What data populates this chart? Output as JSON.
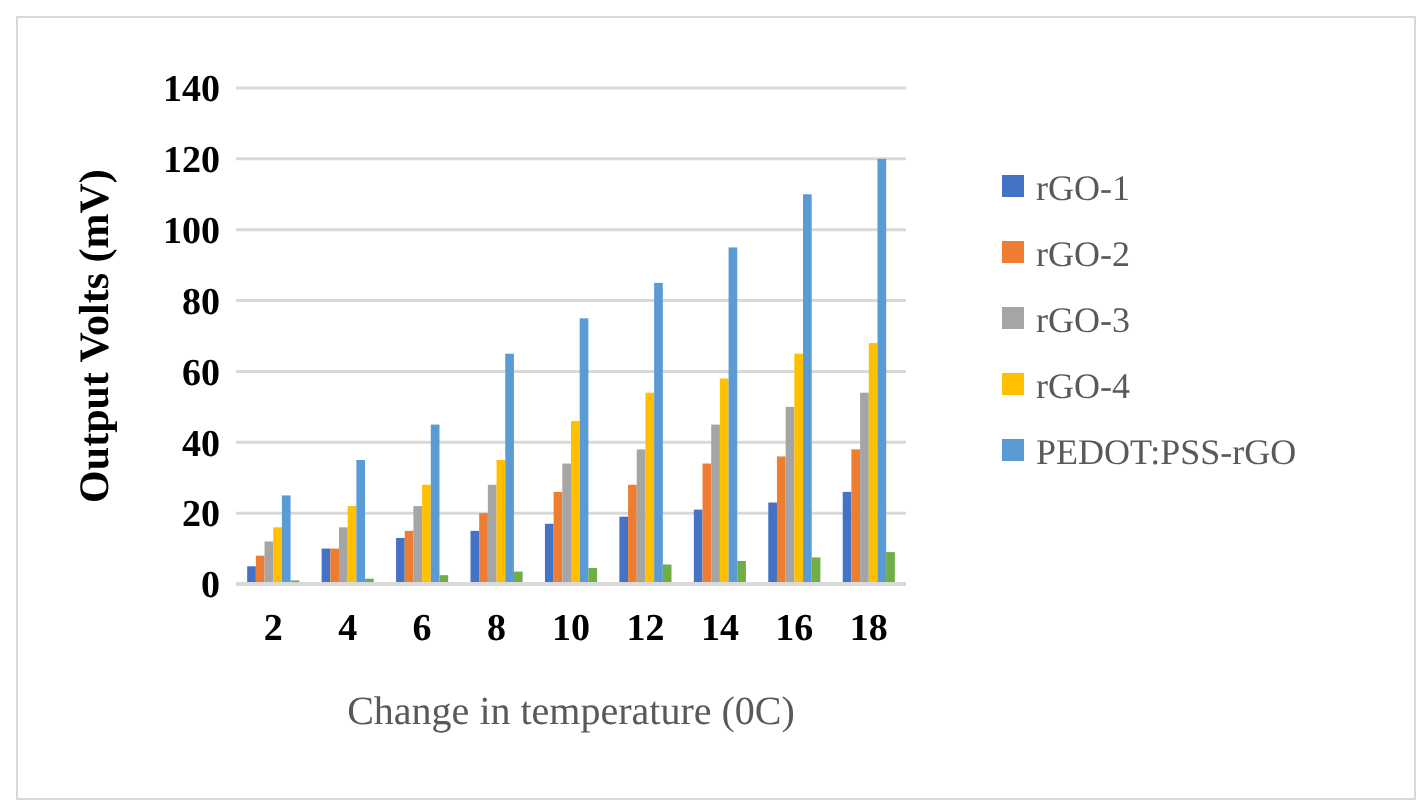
{
  "chart_data": {
    "type": "bar",
    "xlabel": "Change in temperature (0C)",
    "ylabel": "Output Volts (mV)",
    "categories": [
      "2",
      "4",
      "6",
      "8",
      "10",
      "12",
      "14",
      "16",
      "18"
    ],
    "series": [
      {
        "name": "rGO-1",
        "color": "#4472c4",
        "values": [
          5,
          10,
          13,
          15,
          17,
          19,
          21,
          23,
          26
        ]
      },
      {
        "name": "rGO-2",
        "color": "#ed7d31",
        "values": [
          8,
          10,
          15,
          20,
          26,
          28,
          34,
          36,
          38
        ]
      },
      {
        "name": "rGO-3",
        "color": "#a5a5a5",
        "values": [
          12,
          16,
          22,
          28,
          34,
          38,
          45,
          50,
          54
        ]
      },
      {
        "name": "rGO-4",
        "color": "#ffc000",
        "values": [
          16,
          22,
          28,
          35,
          46,
          54,
          58,
          65,
          68
        ]
      },
      {
        "name": "PEDOT:PSS-rGO",
        "color": "#5b9bd5",
        "values": [
          25,
          35,
          45,
          65,
          75,
          85,
          95,
          110,
          120
        ]
      },
      {
        "color": "#70ad47",
        "values": [
          1,
          1.5,
          2.5,
          3.5,
          4.5,
          5.5,
          6.5,
          7.5,
          9
        ]
      }
    ],
    "ylim": [
      0,
      140
    ],
    "yticks": [
      0,
      20,
      40,
      60,
      80,
      100,
      120,
      140
    ],
    "grid": "y",
    "legend": "right"
  }
}
